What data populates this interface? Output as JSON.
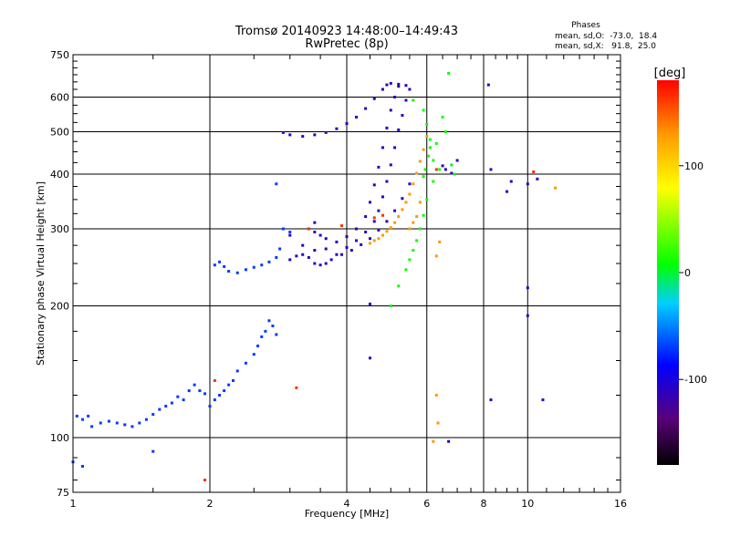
{
  "title_line1": "Tromsø 20140923 14:48:00–14:49:43",
  "title_line2": "RwPretec (8p)",
  "stats": {
    "heading": "Phases",
    "line_o": "mean, sd,O:  -73.0,  18.4",
    "line_x": "mean, sd,X:   91.8,  25.0"
  },
  "chart_data": {
    "type": "scatter",
    "x_scale": "log",
    "y_scale": "log",
    "xlabel": "Frequency [MHz]",
    "ylabel": "Stationary phase Virtual Height [km]",
    "xlim": [
      1,
      16
    ],
    "ylim": [
      75,
      750
    ],
    "x_ticks": [
      1,
      2,
      4,
      6,
      8,
      10,
      16
    ],
    "x_tick_labels": [
      "1",
      "2",
      "4",
      "6",
      "8",
      "10",
      "16"
    ],
    "x_minor_ticks": [
      1.5,
      2.5,
      3,
      3.5,
      4.5,
      5,
      5.5,
      6.5,
      7,
      7.5,
      8.5,
      9,
      9.5,
      11,
      12,
      13,
      14,
      15
    ],
    "y_ticks": [
      75,
      100,
      200,
      300,
      400,
      500,
      600,
      750
    ],
    "y_tick_labels": [
      "75",
      "100",
      "200",
      "300",
      "400",
      "500",
      "600",
      "750"
    ],
    "y_minor_ticks": [
      80,
      90,
      125,
      150,
      175,
      225,
      250,
      275,
      325,
      350,
      375,
      425,
      450,
      475,
      525,
      550,
      575,
      625,
      650,
      675,
      700,
      725
    ],
    "grid": true,
    "colorbar": {
      "label": "[deg]",
      "range": [
        -180,
        180
      ],
      "ticks": [
        -100,
        0,
        100
      ],
      "tick_labels": [
        "-100",
        "0",
        "100"
      ]
    },
    "series": [
      {
        "points": [
          [
            1.02,
            112
          ],
          [
            1.05,
            110
          ],
          [
            1.08,
            112
          ],
          [
            1.1,
            106
          ],
          [
            1.15,
            108
          ],
          [
            1.2,
            109
          ],
          [
            1.25,
            108
          ],
          [
            1.3,
            107
          ],
          [
            1.35,
            106
          ],
          [
            1.4,
            108
          ],
          [
            1.45,
            110
          ],
          [
            1.5,
            113
          ],
          [
            1.55,
            116
          ],
          [
            1.6,
            118
          ],
          [
            1.65,
            120
          ],
          [
            1.7,
            124
          ],
          [
            1.75,
            122
          ],
          [
            1.8,
            128
          ],
          [
            1.85,
            132
          ],
          [
            1.9,
            128
          ],
          [
            1.95,
            126
          ],
          [
            2,
            118
          ],
          [
            2.05,
            122
          ],
          [
            2.1,
            125
          ],
          [
            2.15,
            128
          ],
          [
            2.2,
            132
          ],
          [
            2.25,
            135
          ],
          [
            2.3,
            142
          ],
          [
            2.4,
            148
          ],
          [
            2.5,
            155
          ],
          [
            2.55,
            162
          ],
          [
            2.6,
            170
          ],
          [
            2.65,
            175
          ],
          [
            2.7,
            185
          ],
          [
            2.75,
            180
          ],
          [
            2.8,
            172
          ],
          [
            2.05,
            248
          ],
          [
            2.1,
            252
          ],
          [
            2.15,
            246
          ],
          [
            2.2,
            240
          ],
          [
            2.3,
            238
          ],
          [
            2.4,
            242
          ],
          [
            2.5,
            245
          ],
          [
            2.6,
            248
          ],
          [
            2.7,
            252
          ],
          [
            2.8,
            258
          ],
          [
            2.85,
            270
          ],
          [
            2.8,
            380
          ],
          [
            2.9,
            300
          ],
          [
            3.0,
            295
          ],
          [
            1.0,
            88
          ],
          [
            1.05,
            86
          ],
          [
            1.5,
            93
          ]
        ],
        "phase": -70
      },
      {
        "points": [
          [
            2.9,
            498
          ],
          [
            3.0,
            492
          ],
          [
            3.2,
            488
          ],
          [
            3.4,
            492
          ],
          [
            3.6,
            498
          ],
          [
            3.8,
            508
          ],
          [
            4.0,
            522
          ],
          [
            4.2,
            540
          ],
          [
            4.4,
            565
          ],
          [
            4.6,
            595
          ],
          [
            4.8,
            625
          ],
          [
            4.9,
            640
          ],
          [
            5.0,
            645
          ],
          [
            5.2,
            642
          ],
          [
            5.4,
            638
          ],
          [
            3.0,
            255
          ],
          [
            3.1,
            260
          ],
          [
            3.2,
            262
          ],
          [
            3.3,
            258
          ],
          [
            3.4,
            250
          ],
          [
            3.5,
            248
          ],
          [
            3.6,
            250
          ],
          [
            3.7,
            255
          ],
          [
            3.8,
            262
          ],
          [
            4.0,
            272
          ],
          [
            4.2,
            282
          ],
          [
            4.4,
            295
          ],
          [
            4.6,
            312
          ],
          [
            4.7,
            330
          ],
          [
            4.8,
            355
          ],
          [
            4.9,
            385
          ],
          [
            5.0,
            420
          ],
          [
            5.1,
            460
          ],
          [
            5.2,
            505
          ],
          [
            5.3,
            545
          ],
          [
            5.4,
            590
          ],
          [
            5.5,
            625
          ],
          [
            3.3,
            300
          ],
          [
            3.4,
            295
          ],
          [
            3.5,
            290
          ],
          [
            3.6,
            285
          ],
          [
            3.8,
            280
          ],
          [
            4.0,
            288
          ],
          [
            4.2,
            300
          ],
          [
            4.4,
            320
          ],
          [
            4.5,
            345
          ],
          [
            4.6,
            378
          ],
          [
            4.7,
            415
          ],
          [
            4.8,
            460
          ],
          [
            4.9,
            510
          ],
          [
            5.0,
            560
          ],
          [
            5.1,
            600
          ],
          [
            5.2,
            635
          ],
          [
            3.0,
            290
          ],
          [
            3.2,
            275
          ],
          [
            3.4,
            268
          ],
          [
            3.6,
            270
          ],
          [
            3.9,
            262
          ],
          [
            4.1,
            268
          ],
          [
            4.3,
            276
          ],
          [
            4.5,
            285
          ],
          [
            4.7,
            298
          ],
          [
            4.9,
            312
          ],
          [
            5.1,
            330
          ],
          [
            5.3,
            352
          ],
          [
            5.5,
            380
          ],
          [
            6.5,
            418
          ],
          [
            6.6,
            410
          ],
          [
            6.8,
            402
          ],
          [
            7.0,
            430
          ],
          [
            8.2,
            640
          ],
          [
            8.3,
            410
          ],
          [
            10.0,
            380
          ],
          [
            10.0,
            220
          ],
          [
            10.0,
            190
          ],
          [
            10.5,
            390
          ],
          [
            9.2,
            385
          ],
          [
            9.0,
            365
          ],
          [
            4.5,
            152
          ],
          [
            4.5,
            202
          ],
          [
            6.7,
            98
          ],
          [
            10.8,
            122
          ],
          [
            8.3,
            122
          ],
          [
            3.4,
            310
          ]
        ],
        "phase": -110
      },
      {
        "points": [
          [
            5.0,
            200
          ],
          [
            5.2,
            222
          ],
          [
            5.4,
            242
          ],
          [
            5.5,
            255
          ],
          [
            5.6,
            268
          ],
          [
            5.7,
            282
          ],
          [
            5.8,
            300
          ],
          [
            5.9,
            322
          ],
          [
            6.0,
            350
          ],
          [
            6.2,
            385
          ],
          [
            6.4,
            410
          ],
          [
            6.1,
            480
          ],
          [
            6.0,
            520
          ],
          [
            5.9,
            560
          ],
          [
            5.6,
            590
          ],
          [
            6.5,
            540
          ],
          [
            6.6,
            500
          ],
          [
            6.7,
            680
          ],
          [
            6.8,
            420
          ],
          [
            6.9,
            400
          ],
          [
            6.3,
            470
          ],
          [
            6.2,
            430
          ],
          [
            5.9,
            395
          ],
          [
            5.95,
            410
          ],
          [
            6.05,
            440
          ],
          [
            6.1,
            460
          ]
        ],
        "phase": 10
      },
      {
        "points": [
          [
            4.5,
            278
          ],
          [
            4.6,
            282
          ],
          [
            4.7,
            285
          ],
          [
            4.8,
            290
          ],
          [
            4.9,
            296
          ],
          [
            5.0,
            302
          ],
          [
            5.1,
            310
          ],
          [
            5.2,
            320
          ],
          [
            5.3,
            332
          ],
          [
            5.4,
            345
          ],
          [
            5.5,
            360
          ],
          [
            5.6,
            380
          ],
          [
            5.7,
            402
          ],
          [
            5.8,
            428
          ],
          [
            5.9,
            455
          ],
          [
            6.0,
            488
          ],
          [
            5.5,
            300
          ],
          [
            5.6,
            310
          ],
          [
            5.7,
            320
          ],
          [
            5.8,
            345
          ],
          [
            6.3,
            260
          ],
          [
            6.4,
            280
          ],
          [
            6.2,
            98
          ],
          [
            6.35,
            108
          ],
          [
            6.3,
            125
          ],
          [
            11.5,
            372
          ]
        ],
        "phase": 130
      },
      {
        "points": [
          [
            2.05,
            135
          ],
          [
            1.95,
            80
          ],
          [
            3.9,
            305
          ],
          [
            4.6,
            318
          ],
          [
            4.8,
            322
          ],
          [
            3.3,
            300
          ],
          [
            6.3,
            410
          ],
          [
            3.1,
            130
          ],
          [
            10.3,
            405
          ]
        ],
        "phase": 165
      }
    ]
  }
}
